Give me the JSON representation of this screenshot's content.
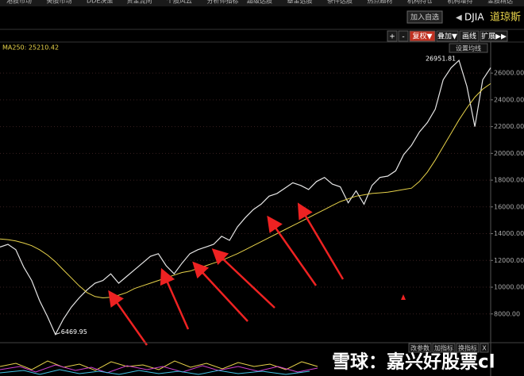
{
  "toolbar": {
    "tabs": [
      "港股市场",
      "美股市场",
      "DDE决策",
      "资金流向",
      "个股风云",
      "分析师指标",
      "超级选股",
      "基金选股",
      "条件选股",
      "热点题材",
      "机构持仓",
      "机构增持",
      "金股精选"
    ]
  },
  "header": {
    "add_button": "加入自选",
    "symbol": "DJIA",
    "name": "道琼斯"
  },
  "chart_tools": [
    "+",
    "-",
    "复权▼",
    "叠加▼",
    "画线",
    "扩展▶▶"
  ],
  "ma_settings": "设置均线",
  "chart_data": {
    "type": "line",
    "categories": [
      null,
      null,
      null,
      null,
      null,
      null,
      null,
      null,
      null,
      null,
      null,
      null,
      null,
      null,
      null,
      null,
      null,
      null,
      null,
      null,
      null,
      null,
      null,
      null,
      null,
      null,
      null,
      null,
      null,
      null,
      null,
      null,
      null,
      null,
      null,
      null,
      null,
      null,
      null,
      null,
      null,
      null,
      null,
      null,
      null,
      null,
      null,
      null,
      null,
      null,
      null,
      null,
      null,
      null,
      null,
      null,
      null,
      null,
      null,
      null,
      null,
      null,
      null
    ],
    "series": [
      {
        "color": "#e6e6e6",
        "values": [
          13000,
          13200,
          12800,
          11500,
          10500,
          9000,
          7800,
          6469.95,
          7600,
          8500,
          9200,
          9800,
          10300,
          10500,
          11000,
          10300,
          10800,
          11300,
          11800,
          12300,
          12500,
          11600,
          11000,
          11800,
          12500,
          12800,
          13000,
          13200,
          13800,
          13500,
          14500,
          15200,
          15800,
          16200,
          16800,
          17000,
          17400,
          17800,
          17600,
          17300,
          17900,
          18200,
          17700,
          17500,
          16300,
          17200,
          16200,
          17600,
          18200,
          18300,
          18700,
          19900,
          20600,
          21600,
          22300,
          23300,
          25500,
          26400,
          26951.81,
          25000,
          22000,
          25500,
          26400
        ]
      },
      {
        "name": "MA250: 25210.42",
        "color": "#e8d34a",
        "values": [
          13600,
          13550,
          13450,
          13300,
          13100,
          12800,
          12400,
          11900,
          11300,
          10700,
          10100,
          9600,
          9300,
          9200,
          9250,
          9400,
          9600,
          9900,
          10100,
          10300,
          10500,
          10700,
          10900,
          11100,
          11200,
          11400,
          11600,
          11800,
          12000,
          12250,
          12500,
          12800,
          13100,
          13400,
          13700,
          14000,
          14300,
          14600,
          14900,
          15200,
          15500,
          15800,
          16100,
          16400,
          16600,
          16800,
          16900,
          17000,
          17050,
          17100,
          17200,
          17300,
          17400,
          17900,
          18600,
          19500,
          20500,
          21500,
          22500,
          23400,
          24200,
          24800,
          25210.42
        ]
      }
    ],
    "ylim": [
      5970,
      27430
    ],
    "yticks": [
      {
        "value": 8000,
        "label": "8000.00"
      },
      {
        "value": 10000,
        "label": "10000.00"
      },
      {
        "value": 12000,
        "label": "12000.00"
      },
      {
        "value": 14000,
        "label": "14000.00"
      },
      {
        "value": 16000,
        "label": "16000.00"
      },
      {
        "value": 18000,
        "label": "18000.00"
      },
      {
        "value": 20000,
        "label": "20000.00"
      },
      {
        "value": 22000,
        "label": "22000.00"
      },
      {
        "value": 24000,
        "label": "24000.00"
      },
      {
        "value": 26000,
        "label": "26000.00"
      }
    ],
    "grid": true,
    "high": 26951.81,
    "low": 6469.95
  },
  "indicator_buttons": [
    "改参数",
    "加指标",
    "换指标",
    "X"
  ],
  "watermark": "雪球：嘉兴好股票cl"
}
